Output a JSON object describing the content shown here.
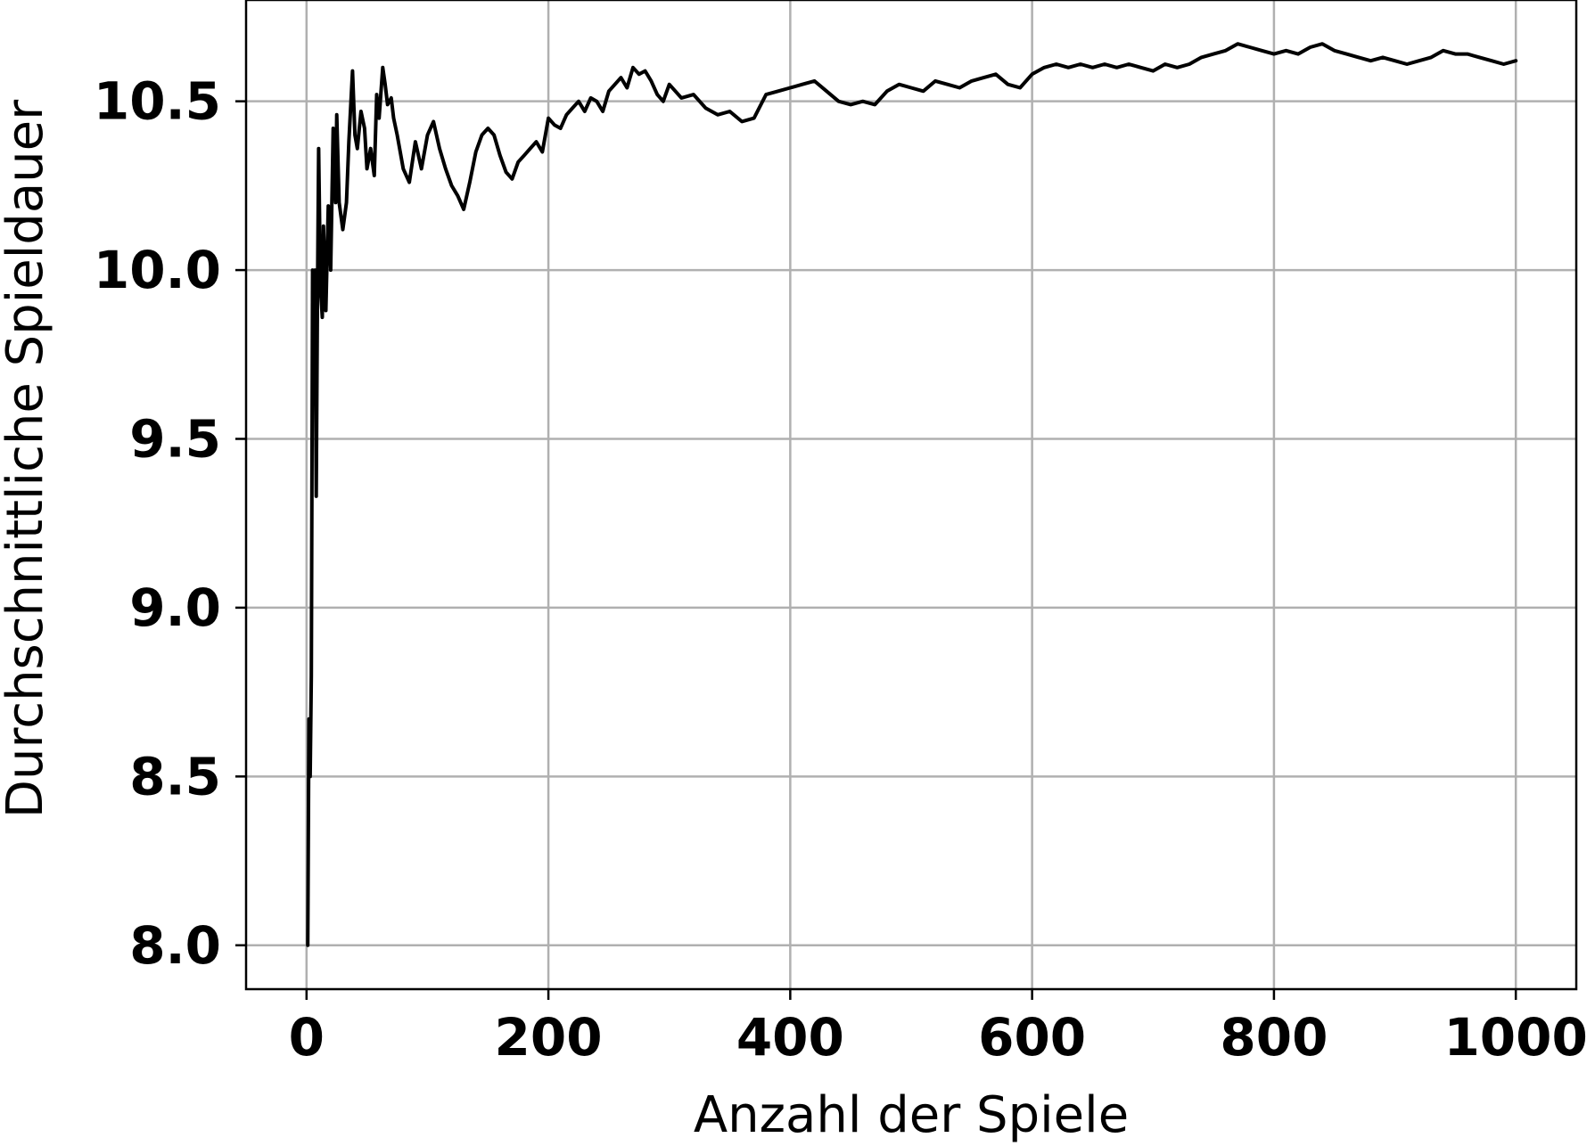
{
  "chart_data": {
    "type": "line",
    "title": "",
    "xlabel": "Anzahl der Spiele",
    "ylabel": "Durchschnittliche Spieldauer",
    "xlim": [
      -50,
      1050
    ],
    "ylim": [
      7.87,
      10.8
    ],
    "xticks": [
      0,
      200,
      400,
      600,
      800,
      1000
    ],
    "yticks": [
      8.0,
      8.5,
      9.0,
      9.5,
      10.0,
      10.5
    ],
    "xtick_labels": [
      "0",
      "200",
      "400",
      "600",
      "800",
      "1000"
    ],
    "ytick_labels": [
      "8.0",
      "8.5",
      "9.0",
      "9.5",
      "10.0",
      "10.5"
    ],
    "grid": true,
    "legend": "none",
    "line_color": "#000000",
    "series": [
      {
        "name": "",
        "x": [
          1,
          2,
          3,
          4,
          5,
          6,
          7,
          8,
          9,
          10,
          11,
          12,
          13,
          14,
          16,
          18,
          20,
          22,
          24,
          25,
          27,
          30,
          33,
          35,
          38,
          40,
          42,
          45,
          48,
          50,
          53,
          56,
          58,
          60,
          63,
          65,
          67,
          70,
          72,
          75,
          80,
          85,
          90,
          95,
          100,
          105,
          110,
          115,
          120,
          125,
          130,
          135,
          140,
          145,
          150,
          155,
          160,
          165,
          170,
          175,
          180,
          185,
          190,
          195,
          200,
          205,
          210,
          215,
          220,
          225,
          230,
          235,
          240,
          245,
          250,
          255,
          260,
          265,
          270,
          275,
          280,
          285,
          290,
          295,
          300,
          310,
          320,
          330,
          340,
          350,
          360,
          370,
          380,
          390,
          400,
          410,
          420,
          430,
          440,
          450,
          460,
          470,
          480,
          490,
          500,
          510,
          520,
          530,
          540,
          550,
          560,
          570,
          580,
          590,
          600,
          610,
          620,
          630,
          640,
          650,
          660,
          670,
          680,
          690,
          700,
          710,
          720,
          730,
          740,
          750,
          760,
          770,
          780,
          790,
          800,
          810,
          820,
          830,
          840,
          850,
          860,
          870,
          880,
          890,
          900,
          910,
          920,
          930,
          940,
          950,
          960,
          970,
          980,
          990,
          1000
        ],
        "y": [
          8.0,
          8.67,
          8.5,
          8.8,
          10.0,
          9.83,
          10.0,
          9.33,
          9.89,
          10.36,
          10.1,
          9.92,
          9.86,
          10.13,
          9.88,
          10.19,
          10.0,
          10.42,
          10.2,
          10.46,
          10.2,
          10.12,
          10.2,
          10.38,
          10.59,
          10.4,
          10.36,
          10.47,
          10.42,
          10.3,
          10.36,
          10.28,
          10.52,
          10.45,
          10.6,
          10.55,
          10.49,
          10.51,
          10.45,
          10.4,
          10.3,
          10.26,
          10.38,
          10.3,
          10.4,
          10.44,
          10.36,
          10.3,
          10.25,
          10.22,
          10.18,
          10.26,
          10.35,
          10.4,
          10.42,
          10.4,
          10.34,
          10.29,
          10.27,
          10.32,
          10.34,
          10.36,
          10.38,
          10.35,
          10.45,
          10.43,
          10.42,
          10.46,
          10.48,
          10.5,
          10.47,
          10.51,
          10.5,
          10.47,
          10.53,
          10.55,
          10.57,
          10.54,
          10.6,
          10.58,
          10.59,
          10.56,
          10.52,
          10.5,
          10.55,
          10.51,
          10.52,
          10.48,
          10.46,
          10.47,
          10.44,
          10.45,
          10.52,
          10.53,
          10.54,
          10.55,
          10.56,
          10.53,
          10.5,
          10.49,
          10.5,
          10.49,
          10.53,
          10.55,
          10.54,
          10.53,
          10.56,
          10.55,
          10.54,
          10.56,
          10.57,
          10.58,
          10.55,
          10.54,
          10.58,
          10.6,
          10.61,
          10.6,
          10.61,
          10.6,
          10.61,
          10.6,
          10.61,
          10.6,
          10.59,
          10.61,
          10.6,
          10.61,
          10.63,
          10.64,
          10.65,
          10.67,
          10.66,
          10.65,
          10.64,
          10.65,
          10.64,
          10.66,
          10.67,
          10.65,
          10.64,
          10.63,
          10.62,
          10.63,
          10.62,
          10.61,
          10.62,
          10.63,
          10.65,
          10.64,
          10.64,
          10.63,
          10.62,
          10.61,
          10.62
        ]
      }
    ]
  }
}
